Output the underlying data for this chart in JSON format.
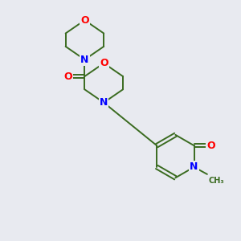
{
  "background_color": "#e8eaf0",
  "bond_color": "#3a6b20",
  "atom_colors": {
    "O": "#ff0000",
    "N": "#0000ff",
    "C": "#3a6b20"
  },
  "figsize": [
    3.0,
    3.0
  ],
  "dpi": 100,
  "line_width": 1.4
}
